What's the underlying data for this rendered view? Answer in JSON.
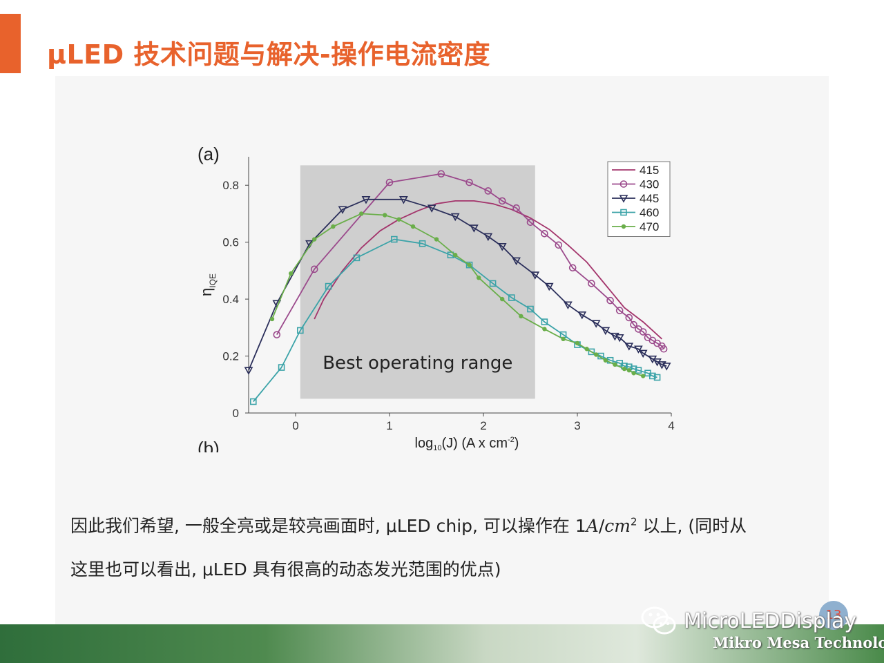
{
  "slide": {
    "title": "μLED 技术问题与解决-操作电流密度",
    "page_number": "13"
  },
  "body": {
    "line1_before": "因此我们希望, 一般全亮或是较亮画面时, μLED chip, 可以操作在 1",
    "line1_unit_a": "A",
    "line1_slash": "/",
    "line1_unit_cm": "cm",
    "line1_exp": "2",
    "line1_after": " 以上, (同时从",
    "line2": "这里也可以看出, μLED 具有很高的动态发光范围的优点)"
  },
  "footer": {
    "brand": "MicroLEDDisplay",
    "company": "Mikro Mesa Technology"
  },
  "icons": {
    "wechat": "wechat-icon"
  },
  "chart_data": {
    "type": "line",
    "panel_label": "(a)",
    "next_panel_label": "(b)",
    "xlabel_prefix": "log",
    "xlabel_sub": "10",
    "xlabel_mid": "(J) (A x cm",
    "xlabel_sup": "-2",
    "xlabel_end": ")",
    "ylabel_main": "η",
    "ylabel_sub": "IQE",
    "xlim": [
      -0.5,
      4.0
    ],
    "ylim": [
      0,
      0.9
    ],
    "xticks": [
      0,
      1,
      2,
      3,
      4
    ],
    "yticks": [
      0,
      0.2,
      0.4,
      0.6,
      0.8
    ],
    "grid": false,
    "legend_position": "top-right",
    "annotation": {
      "text": "Best operating range",
      "x_range": [
        0.05,
        2.55
      ],
      "y_range": [
        0.05,
        0.87
      ]
    },
    "series": [
      {
        "name": "415",
        "color": "#a3346b",
        "marker": "none",
        "x": [
          0.2,
          0.3,
          0.5,
          0.7,
          0.9,
          1.1,
          1.3,
          1.5,
          1.7,
          1.9,
          2.1,
          2.3,
          2.5,
          2.7,
          2.9,
          3.1,
          3.3,
          3.5,
          3.7,
          3.9
        ],
        "y": [
          0.33,
          0.4,
          0.5,
          0.58,
          0.64,
          0.68,
          0.71,
          0.735,
          0.745,
          0.745,
          0.735,
          0.715,
          0.685,
          0.645,
          0.59,
          0.53,
          0.45,
          0.37,
          0.32,
          0.26
        ]
      },
      {
        "name": "430",
        "color": "#9b4a8c",
        "marker": "circle",
        "x": [
          -0.2,
          0.2,
          1.0,
          1.55,
          1.85,
          2.05,
          2.2,
          2.35,
          2.5,
          2.65,
          2.8,
          2.95,
          3.15,
          3.35,
          3.45,
          3.55,
          3.6,
          3.65,
          3.7,
          3.75,
          3.8,
          3.85,
          3.9,
          3.92
        ],
        "y": [
          0.275,
          0.505,
          0.81,
          0.84,
          0.81,
          0.78,
          0.745,
          0.72,
          0.67,
          0.63,
          0.59,
          0.51,
          0.455,
          0.395,
          0.36,
          0.335,
          0.31,
          0.295,
          0.285,
          0.265,
          0.255,
          0.245,
          0.235,
          0.225
        ]
      },
      {
        "name": "445",
        "color": "#2a2e5a",
        "marker": "triangle-down",
        "x": [
          -0.5,
          -0.2,
          0.15,
          0.5,
          0.75,
          1.15,
          1.45,
          1.7,
          1.9,
          2.05,
          2.2,
          2.35,
          2.55,
          2.7,
          2.9,
          3.05,
          3.2,
          3.3,
          3.4,
          3.45,
          3.55,
          3.65,
          3.7,
          3.8,
          3.85,
          3.9,
          3.95
        ],
        "y": [
          0.15,
          0.385,
          0.595,
          0.715,
          0.75,
          0.75,
          0.72,
          0.69,
          0.65,
          0.62,
          0.585,
          0.535,
          0.485,
          0.445,
          0.38,
          0.345,
          0.315,
          0.29,
          0.27,
          0.265,
          0.235,
          0.225,
          0.21,
          0.19,
          0.18,
          0.17,
          0.165
        ]
      },
      {
        "name": "460",
        "color": "#3ba3a8",
        "marker": "square",
        "x": [
          -0.45,
          -0.15,
          0.05,
          0.35,
          0.65,
          1.05,
          1.35,
          1.65,
          1.85,
          2.1,
          2.3,
          2.5,
          2.65,
          2.85,
          3.0,
          3.15,
          3.25,
          3.35,
          3.45,
          3.5,
          3.55,
          3.6,
          3.65,
          3.75,
          3.8,
          3.85
        ],
        "y": [
          0.04,
          0.16,
          0.29,
          0.445,
          0.545,
          0.61,
          0.595,
          0.555,
          0.52,
          0.455,
          0.405,
          0.365,
          0.32,
          0.275,
          0.24,
          0.215,
          0.2,
          0.185,
          0.175,
          0.165,
          0.162,
          0.155,
          0.15,
          0.14,
          0.13,
          0.125
        ]
      },
      {
        "name": "470",
        "color": "#6aae4a",
        "marker": "dot",
        "x": [
          -0.25,
          -0.05,
          0.2,
          0.4,
          0.7,
          0.95,
          1.1,
          1.25,
          1.5,
          1.7,
          1.85,
          1.95,
          2.2,
          2.4,
          2.65,
          2.85,
          3.0,
          3.1,
          3.2,
          3.3,
          3.4,
          3.5,
          3.55,
          3.6,
          3.7
        ],
        "y": [
          0.33,
          0.49,
          0.61,
          0.655,
          0.7,
          0.695,
          0.68,
          0.655,
          0.61,
          0.555,
          0.52,
          0.475,
          0.4,
          0.34,
          0.295,
          0.26,
          0.245,
          0.225,
          0.205,
          0.185,
          0.17,
          0.155,
          0.15,
          0.14,
          0.13
        ]
      }
    ]
  }
}
